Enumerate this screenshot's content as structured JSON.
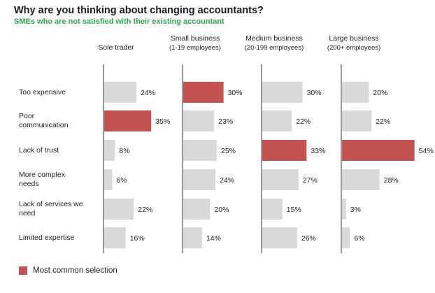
{
  "colors": {
    "highlight": "#c45250",
    "default": "#d9d9d9",
    "subtitle": "#2fa84f",
    "axis": "#555555"
  },
  "header": {
    "title": "Why are you thinking about changing accountants?",
    "subtitle": "SMEs who are not satisfied with their existing accountant"
  },
  "columns": [
    {
      "label": "Sole trader",
      "sublabel": ""
    },
    {
      "label": "Small business",
      "sublabel": "(1-19 employees)"
    },
    {
      "label": "Medium business",
      "sublabel": "(20-199 employees)"
    },
    {
      "label": "Large business",
      "sublabel": "(200+ employees)"
    }
  ],
  "rows": [
    {
      "label_lines": [
        "Too expensive"
      ]
    },
    {
      "label_lines": [
        "Poor",
        "communication"
      ]
    },
    {
      "label_lines": [
        "Lack of trust"
      ]
    },
    {
      "label_lines": [
        "More complex",
        "needs"
      ]
    },
    {
      "label_lines": [
        "Lack of services we",
        "need"
      ]
    },
    {
      "label_lines": [
        "Limited expertise"
      ]
    }
  ],
  "legend": {
    "label": "Most common selection"
  },
  "chart_data": {
    "type": "bar",
    "categories": [
      "Too expensive",
      "Poor communication",
      "Lack of trust",
      "More complex needs",
      "Lack of services we need",
      "Limited expertise"
    ],
    "series": [
      {
        "name": "Sole trader",
        "values": [
          24,
          35,
          8,
          6,
          22,
          16
        ],
        "highlight_index": 1
      },
      {
        "name": "Small business (1-19 employees)",
        "values": [
          30,
          23,
          25,
          24,
          20,
          14
        ],
        "highlight_index": 0
      },
      {
        "name": "Medium business (20-199 employees)",
        "values": [
          30,
          22,
          33,
          27,
          15,
          26
        ],
        "highlight_index": 2
      },
      {
        "name": "Large business (200+ employees)",
        "values": [
          20,
          22,
          54,
          28,
          3,
          6
        ],
        "highlight_index": 2
      }
    ],
    "value_suffix": "%",
    "title": "Why are you thinking about changing accountants?",
    "subtitle": "SMEs who are not satisfied with their existing accountant",
    "legend": "Most common selection"
  }
}
